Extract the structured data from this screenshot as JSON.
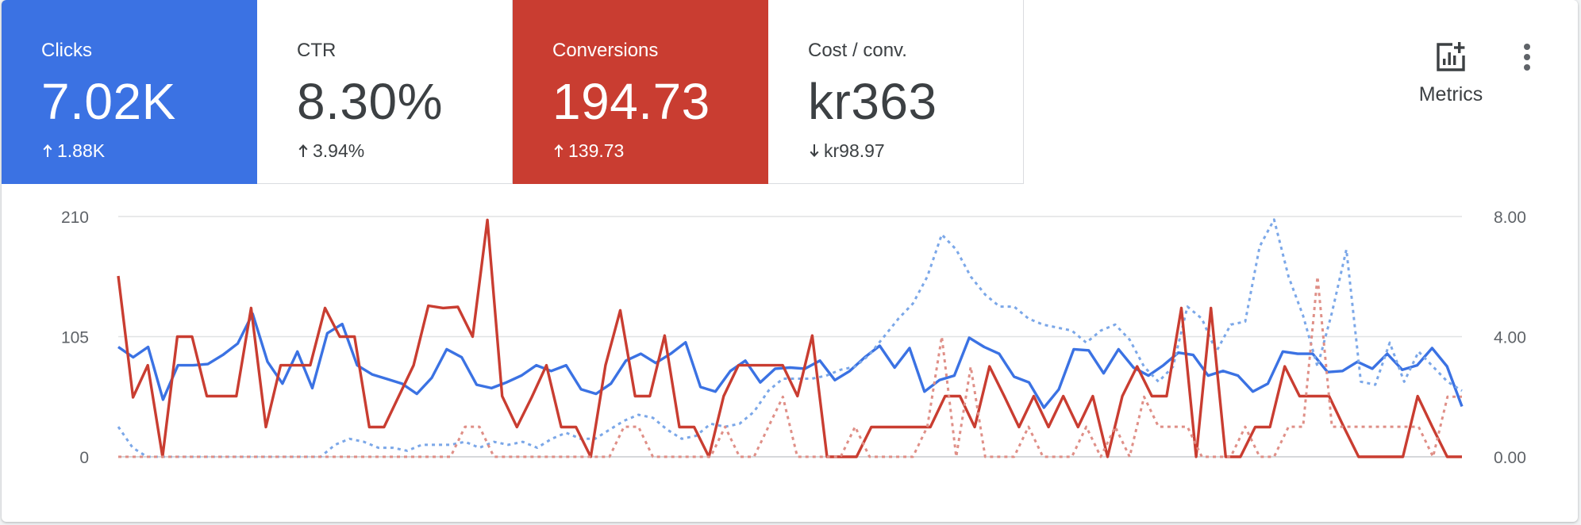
{
  "tiles": [
    {
      "label": "Clicks",
      "value": "7.02K",
      "delta": "1.88K",
      "direction": "up",
      "selected": true,
      "color": "#3b72e3"
    },
    {
      "label": "CTR",
      "value": "8.30%",
      "delta": "3.94%",
      "direction": "up",
      "selected": false
    },
    {
      "label": "Conversions",
      "value": "194.73",
      "delta": "139.73",
      "direction": "up",
      "selected": true,
      "color": "#c93d31"
    },
    {
      "label": "Cost / conv.",
      "value": "kr363",
      "delta": "kr98.97",
      "direction": "down",
      "selected": false
    }
  ],
  "toolbar": {
    "metrics_label": "Metrics",
    "metrics_icon": "add-chart-icon",
    "more_icon": "more-vert-icon"
  },
  "chart_data": {
    "type": "line",
    "grid": true,
    "left_axis": {
      "ticks": [
        "210",
        "105",
        "0"
      ],
      "ylim": [
        0,
        210
      ]
    },
    "right_axis": {
      "ticks": [
        "8.00",
        "4.00",
        "0.00"
      ],
      "ylim": [
        0,
        8
      ]
    },
    "series": [
      {
        "axis": "left",
        "style": "solid",
        "color": "#3b72e3",
        "values": [
          96,
          87,
          96,
          50,
          80,
          80,
          81,
          89,
          99,
          125,
          83,
          64,
          92,
          60,
          108,
          116,
          80,
          72,
          68,
          64,
          55,
          69,
          94,
          87,
          63,
          60,
          65,
          71,
          80,
          75,
          80,
          59,
          55,
          64,
          84,
          90,
          82,
          90,
          100,
          61,
          57,
          75,
          84,
          65,
          77,
          78,
          77,
          84,
          67,
          75,
          87,
          97,
          78,
          95,
          57,
          67,
          71,
          104,
          96,
          90,
          70,
          65,
          43,
          59,
          94,
          93,
          73,
          94,
          78,
          71,
          80,
          91,
          89,
          71,
          75,
          71,
          57,
          64,
          92,
          90,
          90,
          74,
          75,
          83,
          77,
          90,
          76,
          80,
          95,
          79,
          44
        ]
      },
      {
        "axis": "right",
        "style": "dashed",
        "color": "#7ba7e8",
        "values": [
          1.0,
          0.3,
          0.0,
          0.0,
          0.0,
          0.0,
          0.0,
          0.0,
          0.0,
          0.0,
          0.0,
          0.0,
          0.0,
          0.0,
          0.0,
          0.4,
          0.6,
          0.5,
          0.3,
          0.3,
          0.2,
          0.4,
          0.4,
          0.4,
          0.5,
          0.3,
          0.5,
          0.4,
          0.5,
          0.3,
          0.6,
          0.8,
          0.6,
          0.6,
          0.9,
          1.2,
          1.4,
          1.3,
          0.9,
          0.6,
          0.7,
          1.1,
          1.0,
          1.1,
          1.5,
          2.2,
          2.6,
          2.6,
          2.6,
          2.7,
          2.9,
          3.0,
          3.4,
          4.0,
          4.6,
          5.1,
          6.0,
          7.4,
          6.9,
          6.0,
          5.4,
          5.0,
          5.0,
          4.6,
          4.4,
          4.3,
          4.2,
          3.8,
          4.2,
          4.4,
          3.9,
          3.0,
          2.5,
          3.0,
          5.0,
          4.6,
          3.5,
          4.4,
          4.5,
          7.0,
          7.9,
          6.0,
          4.7,
          3.0,
          4.8,
          6.9,
          2.5,
          2.4,
          3.8,
          2.5,
          3.5,
          3.0,
          2.5,
          2.2
        ]
      },
      {
        "axis": "left",
        "style": "solid",
        "color": "#c93d31",
        "values": [
          158,
          52,
          80,
          0,
          105,
          105,
          53,
          53,
          53,
          130,
          26,
          80,
          80,
          80,
          130,
          105,
          105,
          26,
          26,
          53,
          80,
          132,
          130,
          131,
          105,
          207,
          53,
          26,
          52,
          80,
          26,
          26,
          0,
          80,
          128,
          53,
          53,
          106,
          26,
          26,
          0,
          53,
          80,
          80,
          80,
          80,
          53,
          106,
          0,
          0,
          0,
          26,
          26,
          26,
          26,
          26,
          53,
          53,
          26,
          79,
          53,
          26,
          53,
          26,
          53,
          26,
          53,
          0,
          53,
          79,
          53,
          53,
          130,
          0,
          130,
          0,
          0,
          26,
          26,
          79,
          53,
          53,
          53,
          26,
          0,
          0,
          0,
          0,
          53,
          26,
          0,
          0
        ]
      },
      {
        "axis": "right",
        "style": "dashed",
        "color": "#df8f87",
        "values": [
          0.0,
          0.0,
          0.0,
          0.0,
          0.0,
          0.0,
          0.0,
          0.0,
          0.0,
          0.0,
          0.0,
          0.0,
          0.0,
          0.0,
          0.0,
          0.0,
          0.0,
          0.0,
          0.0,
          0.0,
          0.0,
          0.0,
          0.0,
          0.0,
          1.0,
          1.0,
          0.0,
          0.0,
          0.0,
          0.0,
          0.0,
          0.0,
          0.0,
          0.0,
          0.0,
          1.0,
          1.0,
          0.0,
          0.0,
          0.0,
          0.0,
          0.0,
          1.0,
          0.0,
          0.0,
          1.0,
          2.0,
          0.0,
          0.0,
          0.0,
          0.0,
          1.0,
          0.0,
          0.0,
          0.0,
          0.0,
          1.0,
          4.0,
          0.0,
          3.0,
          0.0,
          0.0,
          0.0,
          1.0,
          0.0,
          0.0,
          0.0,
          1.0,
          0.0,
          1.0,
          0.0,
          2.0,
          1.0,
          1.0,
          1.0,
          0.0,
          0.0,
          0.0,
          1.0,
          0.0,
          0.0,
          1.0,
          1.0,
          6.0,
          1.0,
          1.0,
          1.0,
          1.0,
          1.0,
          1.0,
          1.0,
          0.0,
          2.0,
          2.0
        ]
      }
    ]
  }
}
